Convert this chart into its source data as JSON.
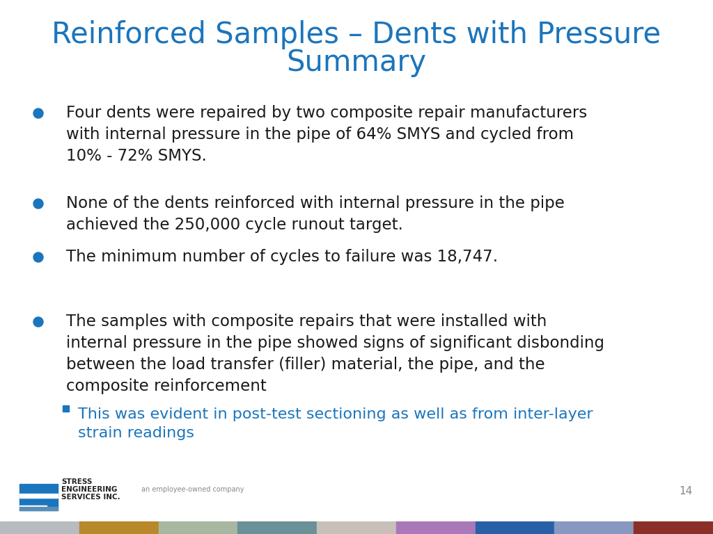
{
  "title_line1": "Reinforced Samples – Dents with Pressure",
  "title_line2": "Summary",
  "title_color": "#1B75BC",
  "title_fontsize": 30,
  "background_color": "#ffffff",
  "bullet_color": "#1B75BC",
  "text_color": "#1a1a1a",
  "sub_bullet_color": "#1B75BC",
  "page_number": "14",
  "bullets": [
    "Four dents were repaired by two composite repair manufacturers\nwith internal pressure in the pipe of 64% SMYS and cycled from\n10% - 72% SMYS.",
    "None of the dents reinforced with internal pressure in the pipe\nachieved the 250,000 cycle runout target.",
    "The minimum number of cycles to failure was 18,747.",
    "The samples with composite repairs that were installed with\ninternal pressure in the pipe showed signs of significant disbonding\nbetween the load transfer (filler) material, the pipe, and the\ncomposite reinforcement"
  ],
  "sub_bullet": "This was evident in post-test sectioning as well as from inter-layer\nstrain readings",
  "footer_colors": [
    "#b8bcc0",
    "#b8882a",
    "#a8b8a0",
    "#6a9098",
    "#c8c0b8",
    "#a878b8",
    "#2860a8",
    "#8898c0",
    "#8b3028"
  ],
  "footer_text": "an employee-owned company",
  "logo_text_line1": "STRESS",
  "logo_text_line2": "ENGINEERING",
  "logo_text_line3": "SERVICES INC.",
  "page_num_color": "#888888",
  "footer_text_color": "#888888",
  "logo_text_color": "#222222"
}
